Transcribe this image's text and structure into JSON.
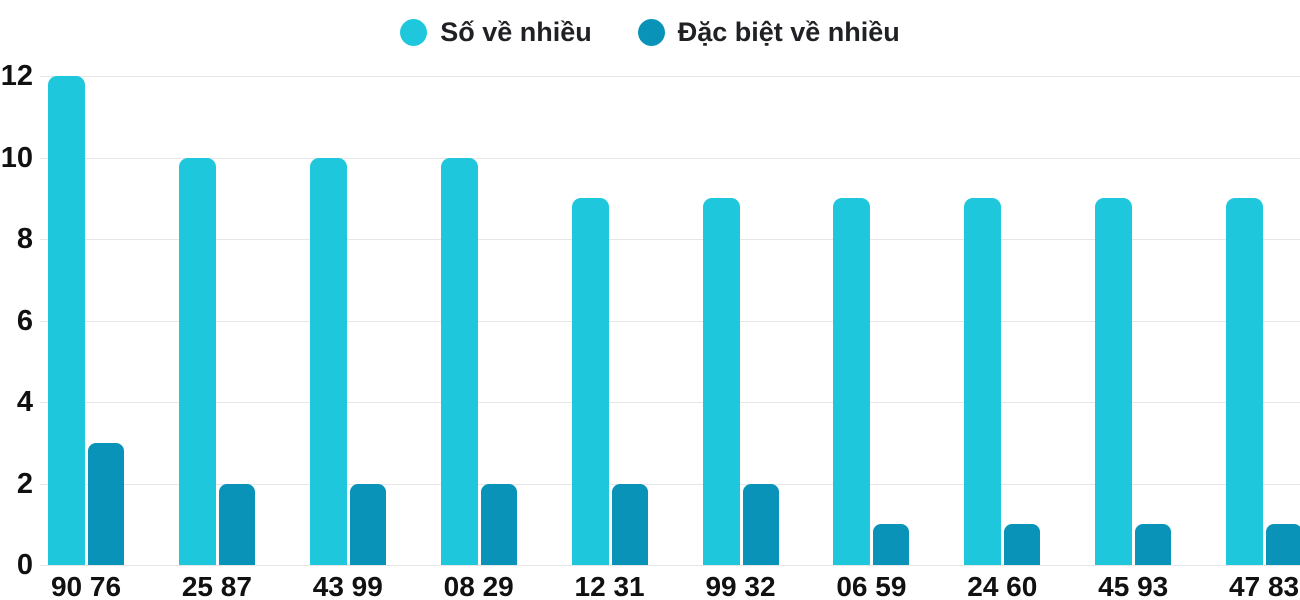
{
  "chart_data": {
    "type": "bar",
    "title": "",
    "xlabel": "",
    "ylabel": "",
    "categories": [
      "90 76",
      "25 87",
      "43 99",
      "08 29",
      "12 31",
      "99 32",
      "06 59",
      "24 60",
      "45 93",
      "47 83"
    ],
    "series": [
      {
        "name": "Số về nhiều",
        "color": "#1EC7DC",
        "values": [
          12,
          10,
          10,
          10,
          9,
          9,
          9,
          9,
          9,
          9
        ]
      },
      {
        "name": "Đặc biệt về nhiều",
        "color": "#0993B8",
        "values": [
          3,
          2,
          2,
          2,
          2,
          2,
          1,
          1,
          1,
          1
        ]
      }
    ],
    "ylim": [
      0,
      12
    ],
    "yticks": [
      0,
      2,
      4,
      6,
      8,
      10,
      12
    ],
    "grid": true,
    "legend_position": "top-center"
  },
  "colors": {
    "grid": "#E6E6E6",
    "axis_text": "#111111",
    "legend_text": "#202124",
    "background": "#FFFFFF"
  }
}
